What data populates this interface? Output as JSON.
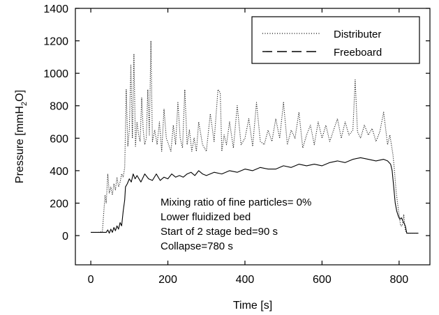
{
  "chart_data": {
    "type": "line",
    "xlabel": "Time [s]",
    "ylabel_prefix": "Pressure [mmH",
    "ylabel_sub": "2",
    "ylabel_suffix": "O]",
    "xlim": [
      -40,
      880
    ],
    "ylim": [
      -180,
      1400
    ],
    "xticks": [
      0,
      200,
      400,
      600,
      800
    ],
    "yticks": [
      0,
      200,
      400,
      600,
      800,
      1000,
      1200,
      1400
    ],
    "legend_position": "top-right",
    "grid": false,
    "series": [
      {
        "name": "Distributer",
        "style": "dotted",
        "x": [
          0,
          10,
          20,
          30,
          33,
          37,
          40,
          44,
          48,
          52,
          56,
          60,
          64,
          68,
          72,
          76,
          80,
          84,
          88,
          92,
          96,
          100,
          104,
          108,
          112,
          116,
          120,
          124,
          128,
          132,
          136,
          140,
          144,
          148,
          152,
          156,
          160,
          166,
          172,
          178,
          184,
          190,
          196,
          202,
          208,
          214,
          220,
          226,
          232,
          238,
          244,
          250,
          256,
          262,
          268,
          274,
          280,
          290,
          300,
          310,
          320,
          330,
          336,
          340,
          346,
          352,
          360,
          370,
          380,
          390,
          400,
          410,
          420,
          430,
          440,
          450,
          460,
          470,
          480,
          490,
          500,
          510,
          520,
          530,
          540,
          550,
          560,
          570,
          580,
          590,
          600,
          610,
          620,
          630,
          640,
          650,
          660,
          670,
          680,
          686,
          692,
          700,
          710,
          720,
          730,
          740,
          750,
          760,
          770,
          776,
          780,
          784,
          788,
          792,
          796,
          800,
          804,
          808,
          812,
          816,
          820,
          830,
          840,
          850
        ],
        "y": [
          20,
          20,
          20,
          25,
          120,
          250,
          200,
          380,
          260,
          300,
          250,
          320,
          280,
          360,
          300,
          330,
          380,
          360,
          420,
          900,
          550,
          650,
          1050,
          600,
          1120,
          550,
          700,
          620,
          580,
          850,
          650,
          560,
          600,
          900,
          620,
          1200,
          580,
          650,
          560,
          700,
          520,
          780,
          600,
          560,
          520,
          680,
          560,
          820,
          600,
          540,
          900,
          560,
          650,
          520,
          600,
          520,
          700,
          560,
          520,
          750,
          580,
          900,
          880,
          520,
          620,
          560,
          700,
          540,
          800,
          560,
          600,
          720,
          550,
          820,
          580,
          560,
          650,
          580,
          720,
          600,
          820,
          560,
          650,
          600,
          760,
          540,
          620,
          680,
          560,
          700,
          600,
          680,
          580,
          650,
          720,
          600,
          700,
          620,
          650,
          960,
          640,
          600,
          680,
          620,
          660,
          580,
          640,
          760,
          560,
          620,
          560,
          500,
          400,
          280,
          200,
          130,
          60,
          60,
          130,
          30,
          15,
          15,
          15,
          15
        ]
      },
      {
        "name": "Freeboard",
        "style": "dashed",
        "x": [
          0,
          10,
          20,
          30,
          40,
          44,
          48,
          52,
          56,
          60,
          64,
          68,
          72,
          76,
          80,
          84,
          88,
          90,
          95,
          100,
          105,
          110,
          115,
          120,
          130,
          140,
          150,
          160,
          170,
          180,
          190,
          200,
          210,
          220,
          230,
          240,
          250,
          260,
          270,
          280,
          290,
          300,
          320,
          340,
          360,
          380,
          400,
          420,
          440,
          460,
          480,
          500,
          520,
          540,
          560,
          580,
          600,
          620,
          640,
          660,
          680,
          700,
          720,
          740,
          760,
          770,
          778,
          782,
          786,
          790,
          794,
          798,
          802,
          806,
          810,
          816,
          820,
          830,
          840,
          850
        ],
        "y": [
          20,
          20,
          20,
          20,
          20,
          35,
          15,
          40,
          20,
          50,
          30,
          60,
          40,
          80,
          60,
          150,
          220,
          300,
          320,
          350,
          330,
          380,
          350,
          370,
          330,
          380,
          350,
          340,
          380,
          340,
          360,
          350,
          380,
          360,
          370,
          360,
          380,
          390,
          370,
          400,
          380,
          370,
          390,
          380,
          400,
          390,
          410,
          400,
          420,
          410,
          410,
          430,
          420,
          440,
          430,
          440,
          430,
          450,
          460,
          450,
          470,
          480,
          470,
          460,
          470,
          460,
          440,
          400,
          300,
          200,
          150,
          120,
          100,
          110,
          90,
          60,
          15,
          15,
          15,
          15
        ]
      }
    ],
    "annotations": [
      "Mixing ratio of fine particles= 0%",
      "Lower fluidized bed",
      "Start of 2 stage bed=90 s",
      "Collapse=780 s"
    ]
  }
}
